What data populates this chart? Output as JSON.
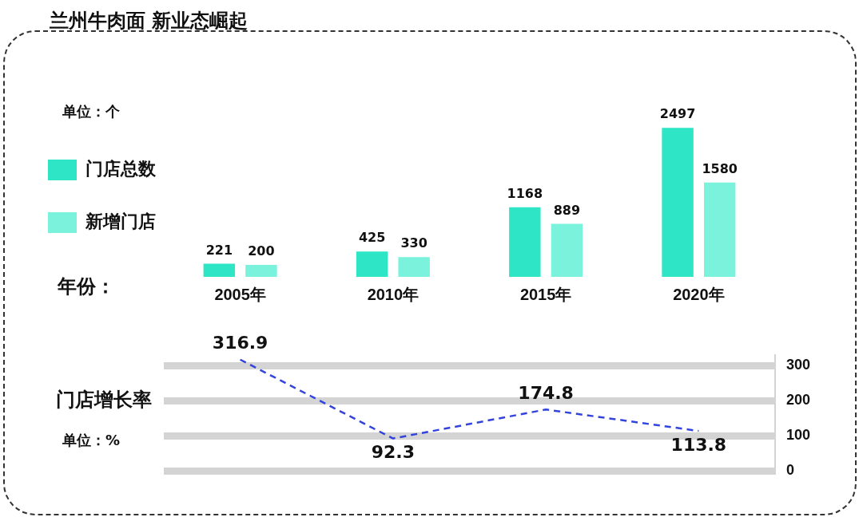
{
  "chart_data": [
    {
      "type": "bar",
      "title": "兰州牛肉面 新业态崛起",
      "subtitle": "单位：个",
      "xlabel": "年份：",
      "categories": [
        "2005年",
        "2010年",
        "2015年",
        "2020年"
      ],
      "series": [
        {
          "name": "门店总数",
          "color": "#2ee6c5",
          "values": [
            221,
            425,
            1168,
            2497
          ]
        },
        {
          "name": "新增门店",
          "color": "#7af2dc",
          "values": [
            200,
            330,
            889,
            1580
          ]
        }
      ],
      "data_labels": true,
      "legend": "left",
      "tick_labels": "x",
      "grid": false
    },
    {
      "type": "line",
      "ylabel": "门店增长率",
      "subtitle": "单位：%",
      "categories": [
        null,
        null,
        null,
        null
      ],
      "series": [
        {
          "color": "#3344dd",
          "values": [
            316.9,
            92.3,
            174.8,
            113.8
          ]
        }
      ],
      "ylim": [
        0,
        330
      ],
      "yticks": [
        0,
        100,
        200,
        300
      ],
      "grid": "y",
      "tick_labels": "y",
      "data_labels": true,
      "line_style": "dashed",
      "marker": "none"
    }
  ]
}
